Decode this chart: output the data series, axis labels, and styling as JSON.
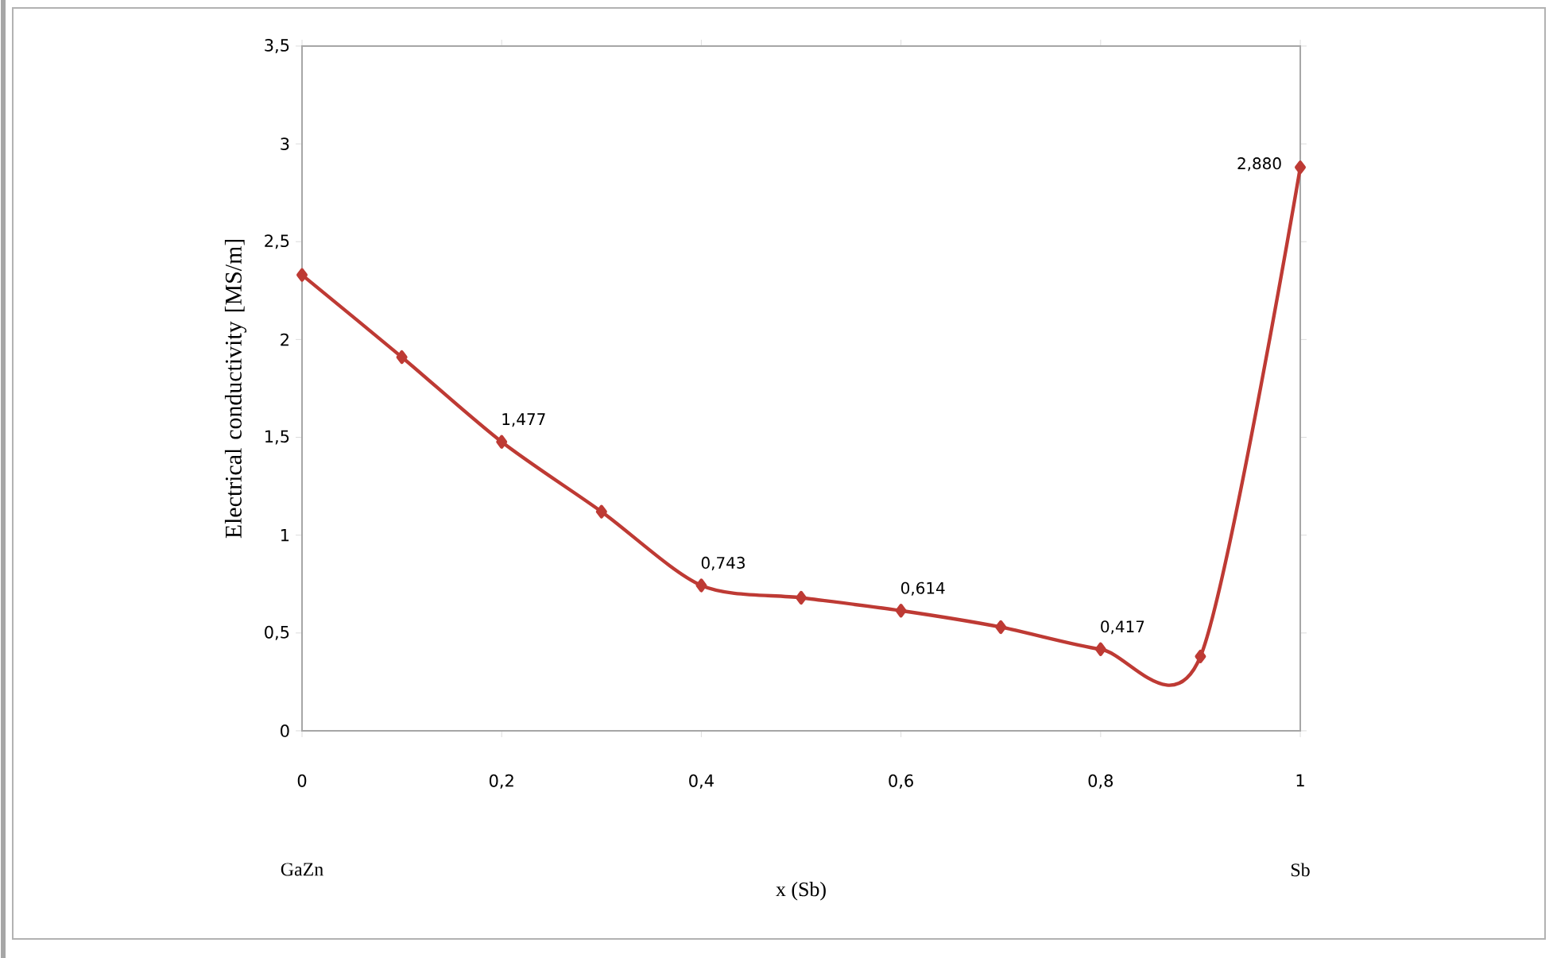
{
  "chart_data": {
    "type": "line",
    "xlabel": "x (Sb)",
    "ylabel": "Electrical conductivity [MS/m]",
    "x": [
      0,
      0.1,
      0.2,
      0.3,
      0.4,
      0.5,
      0.6,
      0.7,
      0.8,
      0.9,
      1
    ],
    "series": [
      {
        "color": "#be3a34",
        "values": [
          2.33,
          1.91,
          1.477,
          1.12,
          0.743,
          0.68,
          0.614,
          0.53,
          0.417,
          0.38,
          2.88
        ],
        "value_labels": [
          null,
          null,
          "1,477",
          null,
          "0,743",
          null,
          "0,614",
          null,
          "0,417",
          null,
          "2,880"
        ]
      }
    ],
    "xlim": [
      0,
      1
    ],
    "ylim": [
      0,
      3.5
    ],
    "xticks": [
      0,
      {
        "value": 0.2,
        "label": "0,2"
      },
      {
        "value": 0.4,
        "label": "0,4"
      },
      {
        "value": 0.6,
        "label": "0,6"
      },
      {
        "value": 0.8,
        "label": "0,8"
      },
      1
    ],
    "yticks": [
      0,
      {
        "value": 0.5,
        "label": "0,5"
      },
      1,
      {
        "value": 1.5,
        "label": "1,5"
      },
      2,
      {
        "value": 2.5,
        "label": "2,5"
      },
      3,
      {
        "value": 3.5,
        "label": "3,5"
      }
    ],
    "annotations": [
      "GaZn",
      "Sb"
    ],
    "grid": false,
    "marker": "diamond",
    "line_style": "solid"
  }
}
